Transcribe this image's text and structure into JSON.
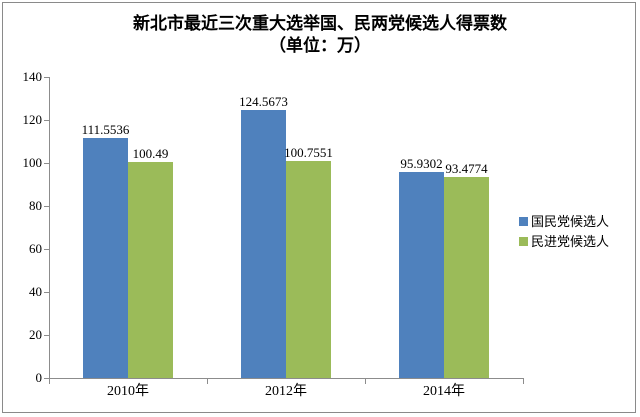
{
  "title": {
    "line1": "新北市最近三次重大选举国、民两党候选人得票数",
    "line2": "（单位：万）"
  },
  "chart_data": {
    "type": "bar",
    "categories": [
      "2010年",
      "2012年",
      "2014年"
    ],
    "series": [
      {
        "name": "国民党候选人",
        "color": "#4F81BD",
        "values": [
          111.5536,
          124.5673,
          95.9302
        ]
      },
      {
        "name": "民进党候选人",
        "color": "#9BBB59",
        "values": [
          100.49,
          100.7551,
          93.4774
        ]
      }
    ],
    "data_labels": [
      "111.5536",
      "100.49",
      "124.5673",
      "100.7551",
      "95.9302",
      "93.4774"
    ],
    "ylim": [
      0,
      140
    ],
    "yticks": [
      0,
      20,
      40,
      60,
      80,
      100,
      120,
      140
    ],
    "xlabel": "",
    "ylabel": "",
    "grid": false,
    "legend_position": "right"
  },
  "colors": {
    "series_blue": "#4F81BD",
    "series_green": "#9BBB59",
    "axis": "#8c8c8c",
    "frame_border": "#8a8a8a",
    "text": "#000000",
    "background": "#ffffff"
  }
}
